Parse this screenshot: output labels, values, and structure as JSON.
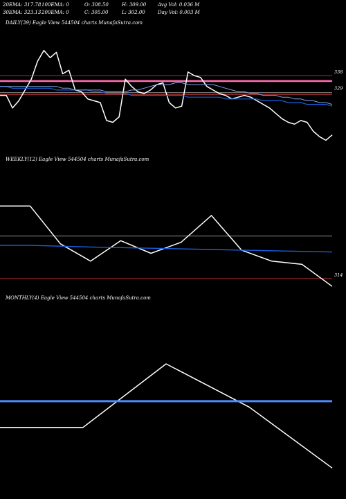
{
  "header": {
    "row1": [
      "20EMA: 317.78",
      "100EMA: 0",
      "O: 308.50",
      "H: 309.00",
      "Avg Vol: 0.036  M"
    ],
    "row2": [
      "30EMA: 323.13",
      "200EMA: 0",
      "C: 305.00",
      "L: 302.00",
      "Day Vol: 0.003 M"
    ]
  },
  "panels": {
    "daily_label": "DAILY(39) Eagle   View  544504  charts MunafaSutra.com",
    "weekly_label": "WEEKLY(12) Eagle   View  544504  charts MunafaSutra.com",
    "monthly_label": "MONTHLY(4) Eagle   View  544504  charts MunafaSutra.com"
  },
  "colors": {
    "price": "#ffffff",
    "ema_blue": "#1a5fe0",
    "ema_light": "#7fa6e6",
    "band_pink": "#ff6fae",
    "ref_red": "#b03030",
    "ref_gray": "#9a9a9a",
    "monthly_blue": "#4d8dff"
  },
  "chart_data": [
    {
      "type": "line",
      "name": "daily",
      "ylim": [
        296,
        350
      ],
      "level_labels": [
        {
          "value": 338,
          "text": "338"
        },
        {
          "value": 329,
          "text": "329"
        }
      ],
      "ref_lines": [
        {
          "value": 338,
          "color": "ref_red",
          "width": 1
        },
        {
          "value": 335,
          "color": "band_pink",
          "width": 2.6
        },
        {
          "value": 328.5,
          "color": "ref_gray",
          "width": 1
        },
        {
          "value": 327.5,
          "color": "ref_red",
          "width": 1
        }
      ],
      "series": [
        {
          "values": [
            327,
            327,
            320,
            324,
            330,
            336,
            346,
            352,
            348,
            351,
            339,
            341,
            330,
            329,
            325,
            324,
            323,
            313,
            312,
            315,
            336,
            332,
            329,
            328,
            330,
            333,
            334,
            323,
            320,
            321,
            340,
            338,
            337,
            332,
            330,
            328,
            327,
            325,
            326,
            327,
            326,
            324,
            322,
            320,
            317,
            314,
            312,
            311,
            313,
            312,
            307,
            304,
            302,
            305
          ],
          "color": "price",
          "width": 1.5
        },
        {
          "values": [
            332,
            332,
            331,
            331,
            331,
            331,
            331,
            331,
            331,
            330,
            330,
            330,
            330,
            330,
            330,
            329,
            329,
            328,
            328,
            328,
            328,
            327,
            327,
            327,
            327,
            327,
            327,
            327,
            327,
            327,
            326,
            326,
            326,
            326,
            326,
            326,
            325,
            325,
            325,
            325,
            325,
            325,
            324,
            324,
            324,
            324,
            323,
            323,
            323,
            322,
            322,
            322,
            322,
            321
          ],
          "color": "ema_blue",
          "width": 1.2
        },
        {
          "values": [
            332,
            332,
            332,
            332,
            332,
            332,
            332,
            332,
            332,
            332,
            331,
            331,
            330,
            330,
            330,
            330,
            330,
            329,
            329,
            329,
            329,
            330,
            330,
            331,
            332,
            333,
            333,
            333,
            334,
            334,
            333,
            333,
            333,
            333,
            333,
            332,
            331,
            330,
            329,
            329,
            328,
            328,
            327,
            327,
            327,
            326,
            326,
            325,
            325,
            324,
            324,
            323,
            323,
            322
          ],
          "color": "ema_light",
          "width": 1
        }
      ]
    },
    {
      "type": "line",
      "name": "weekly",
      "ylim": [
        306,
        372
      ],
      "level_labels": [
        {
          "value": 314,
          "text": "314"
        }
      ],
      "ref_lines": [
        {
          "value": 341,
          "color": "ref_gray",
          "width": 1
        },
        {
          "value": 314,
          "color": "ref_red",
          "width": 1
        }
      ],
      "series": [
        {
          "values": [
            360,
            360,
            336,
            325,
            338,
            330,
            337,
            354,
            332,
            325,
            323,
            309
          ],
          "color": "price",
          "width": 1.5
        },
        {
          "values": [
            335,
            335,
            334.5,
            334,
            333.6,
            333.2,
            332.8,
            332.4,
            332,
            331.6,
            331.2,
            330.8
          ],
          "color": "ema_blue",
          "width": 1.4
        }
      ]
    },
    {
      "type": "line",
      "name": "monthly",
      "ylim": [
        300,
        360
      ],
      "level_labels": [],
      "ref_lines": [],
      "series": [
        {
          "values": [
            320,
            320,
            345,
            328,
            304
          ],
          "color": "price",
          "width": 1.5
        },
        {
          "values": [
            330.3,
            330.3,
            330.3,
            330.3,
            330.3
          ],
          "color": "monthly_blue",
          "width": 3
        }
      ]
    }
  ]
}
